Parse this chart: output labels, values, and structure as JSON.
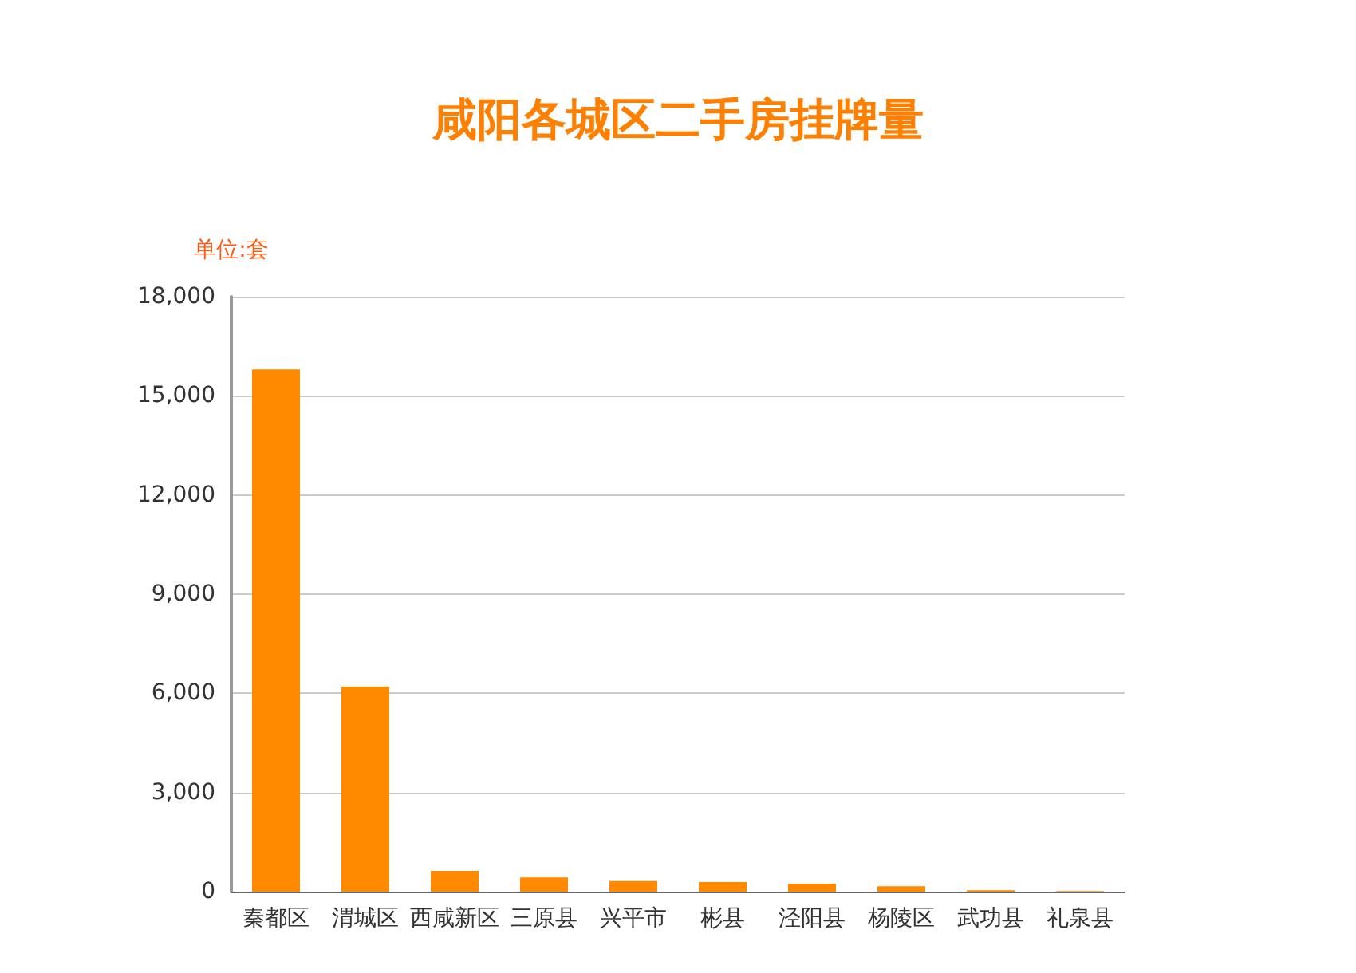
{
  "chart_data": {
    "type": "bar",
    "title": "咸阳各城区二手房挂牌量",
    "ylabel": "单位:套",
    "categories": [
      "秦都区",
      "渭城区",
      "西咸新区",
      "三原县",
      "兴平市",
      "彬县",
      "泾阳县",
      "杨陵区",
      "武功县",
      "礼泉县"
    ],
    "values": [
      15800,
      6200,
      630,
      430,
      320,
      290,
      240,
      160,
      40,
      20
    ],
    "color": "#ff8a00",
    "ylim": [
      0,
      18000
    ],
    "yticks": [
      0,
      {
        "value": 3000,
        "label": "3,000"
      },
      {
        "value": 6000,
        "label": "6,000"
      },
      {
        "value": 9000,
        "label": "9,000"
      },
      {
        "value": 12000,
        "label": "12,000"
      },
      {
        "value": 15000,
        "label": "15,000"
      },
      {
        "value": 18000,
        "label": "18,000"
      }
    ],
    "grid": "y"
  }
}
